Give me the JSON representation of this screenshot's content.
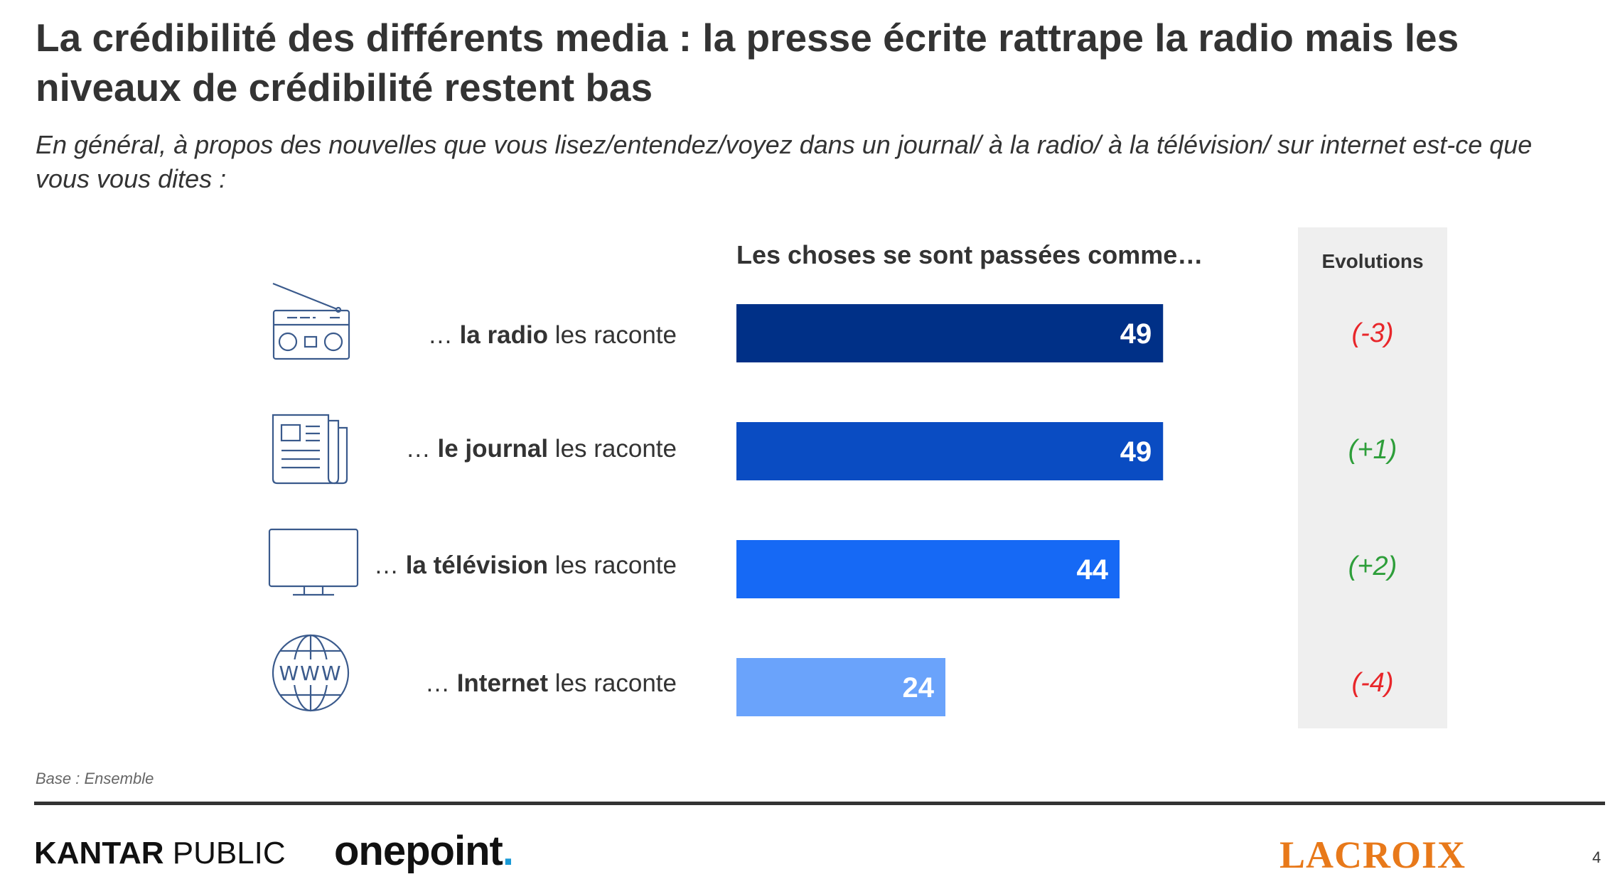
{
  "title": "La crédibilité des différents media : la presse écrite rattrape la radio mais les niveaux de crédibilité restent bas",
  "subtitle": "En général, à propos des nouvelles que vous lisez/entendez/voyez dans un journal/ à la radio/ à la télévision/ sur internet est-ce que vous vous dites :",
  "column_header": "Les choses se sont passées comme…",
  "evolutions_header": "Evolutions",
  "rows": [
    {
      "prefix": "… ",
      "bold": "la radio",
      "suffix": " les raconte",
      "icon": "radio-icon"
    },
    {
      "prefix": "… ",
      "bold": "le journal",
      "suffix": " les raconte",
      "icon": "newspaper-icon"
    },
    {
      "prefix": "… ",
      "bold": "la télévision",
      "suffix": " les raconte",
      "icon": "television-icon"
    },
    {
      "prefix": "… ",
      "bold": "Internet",
      "suffix": " les raconte",
      "icon": "globe-www-icon"
    }
  ],
  "chart_data": {
    "type": "bar",
    "orientation": "horizontal",
    "categories": [
      "… la radio les raconte",
      "… le journal les raconte",
      "… la télévision les raconte",
      "… Internet les raconte"
    ],
    "values": [
      49,
      49,
      44,
      24
    ],
    "value_labels": [
      "49",
      "49",
      "44",
      "24"
    ],
    "bar_colors": [
      "#003087",
      "#0a4cc2",
      "#1669f5",
      "#6aa3fb"
    ],
    "xlim": [
      0,
      100
    ],
    "grid": false,
    "evolutions": [
      "(-3)",
      "(+1)",
      "(+2)",
      "(-4)"
    ],
    "evolution_colors": [
      "#e8262a",
      "#2e9e3a",
      "#2e9e3a",
      "#e8262a"
    ]
  },
  "footer": {
    "base_note": "Base : Ensemble",
    "logo_kantar_bold": "KANTAR",
    "logo_kantar_rest": " PUBLIC",
    "logo_onepoint": "onepoint",
    "logo_onepoint_dot": ".",
    "logo_lacroix": "LACROIX",
    "page_number": "4"
  }
}
